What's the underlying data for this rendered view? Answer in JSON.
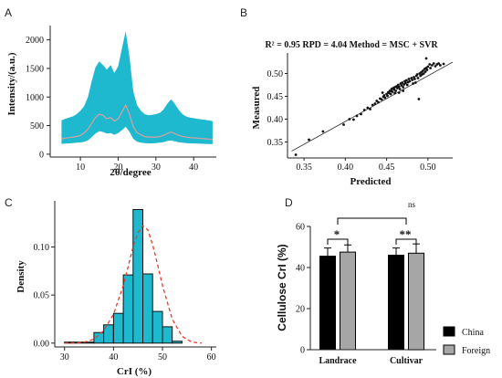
{
  "panel_letters": [
    "A",
    "B",
    "C",
    "D"
  ],
  "chart_data": [
    {
      "panel": "A",
      "type": "area",
      "xlabel": "2θ/degree",
      "ylabel": "Intensity/(a.u.)",
      "xlim": [
        2,
        46
      ],
      "ylim": [
        -50,
        2250
      ],
      "xticks": [
        10,
        20,
        30,
        40
      ],
      "yticks": [
        0,
        500,
        1000,
        1500,
        2000
      ],
      "band_color": "#1fb9cf",
      "mean_color": "#d9a0a0",
      "x": [
        5,
        6,
        7,
        8,
        9,
        10,
        11,
        12,
        13,
        14,
        15,
        16,
        17,
        18,
        19,
        20,
        21,
        22,
        23,
        24,
        25,
        26,
        27,
        28,
        29,
        30,
        31,
        32,
        33,
        34,
        35,
        36,
        37,
        38,
        39,
        40,
        41,
        42,
        43,
        44,
        45
      ],
      "series": [
        {
          "values": [
            590,
            620,
            640,
            660,
            700,
            760,
            840,
            1000,
            1280,
            1520,
            1620,
            1560,
            1480,
            1560,
            1420,
            1540,
            1850,
            2150,
            1700,
            1100,
            860,
            760,
            700,
            680,
            690,
            700,
            720,
            780,
            880,
            960,
            880,
            780,
            700,
            660,
            640,
            630,
            620,
            610,
            600,
            590,
            580
          ]
        },
        {
          "values": [
            270,
            280,
            290,
            300,
            310,
            330,
            370,
            440,
            540,
            640,
            700,
            680,
            620,
            640,
            580,
            620,
            740,
            860,
            700,
            480,
            380,
            340,
            310,
            300,
            300,
            300,
            310,
            330,
            360,
            390,
            360,
            330,
            310,
            300,
            290,
            285,
            280,
            275,
            270,
            265,
            260
          ]
        },
        {
          "values": [
            180,
            185,
            190,
            195,
            200,
            205,
            215,
            240,
            300,
            360,
            400,
            390,
            360,
            370,
            340,
            370,
            420,
            480,
            390,
            270,
            220,
            200,
            195,
            190,
            190,
            195,
            200,
            210,
            230,
            240,
            225,
            210,
            200,
            195,
            190,
            188,
            185,
            183,
            180,
            178,
            175
          ]
        }
      ]
    },
    {
      "panel": "B",
      "type": "scatter",
      "title": "R² = 0.95 RPD = 4.04 Method = MSC + SVR",
      "xlabel": "Predicted",
      "ylabel": "Measured",
      "xlim": [
        0.33,
        0.53
      ],
      "ylim": [
        0.315,
        0.545
      ],
      "xticks": [
        0.35,
        0.4,
        0.45,
        0.5
      ],
      "yticks": [
        0.35,
        0.4,
        0.45,
        0.5
      ],
      "fit_line": {
        "x": [
          0.335,
          0.53
        ],
        "y": [
          0.33,
          0.525
        ]
      },
      "points": [
        [
          0.34,
          0.322
        ],
        [
          0.356,
          0.355
        ],
        [
          0.373,
          0.373
        ],
        [
          0.398,
          0.388
        ],
        [
          0.405,
          0.4
        ],
        [
          0.41,
          0.399
        ],
        [
          0.414,
          0.407
        ],
        [
          0.419,
          0.411
        ],
        [
          0.423,
          0.42
        ],
        [
          0.427,
          0.425
        ],
        [
          0.43,
          0.422
        ],
        [
          0.433,
          0.431
        ],
        [
          0.436,
          0.434
        ],
        [
          0.438,
          0.44
        ],
        [
          0.44,
          0.437
        ],
        [
          0.442,
          0.445
        ],
        [
          0.444,
          0.443
        ],
        [
          0.446,
          0.449
        ],
        [
          0.447,
          0.452
        ],
        [
          0.448,
          0.447
        ],
        [
          0.45,
          0.455
        ],
        [
          0.451,
          0.451
        ],
        [
          0.452,
          0.459
        ],
        [
          0.453,
          0.457
        ],
        [
          0.454,
          0.462
        ],
        [
          0.455,
          0.455
        ],
        [
          0.456,
          0.466
        ],
        [
          0.457,
          0.46
        ],
        [
          0.458,
          0.468
        ],
        [
          0.459,
          0.465
        ],
        [
          0.46,
          0.47
        ],
        [
          0.461,
          0.462
        ],
        [
          0.462,
          0.472
        ],
        [
          0.463,
          0.468
        ],
        [
          0.464,
          0.475
        ],
        [
          0.465,
          0.471
        ],
        [
          0.466,
          0.466
        ],
        [
          0.467,
          0.478
        ],
        [
          0.468,
          0.474
        ],
        [
          0.469,
          0.48
        ],
        [
          0.47,
          0.47
        ],
        [
          0.471,
          0.476
        ],
        [
          0.472,
          0.483
        ],
        [
          0.473,
          0.479
        ],
        [
          0.474,
          0.485
        ],
        [
          0.475,
          0.475
        ],
        [
          0.476,
          0.481
        ],
        [
          0.477,
          0.488
        ],
        [
          0.478,
          0.483
        ],
        [
          0.48,
          0.49
        ],
        [
          0.481,
          0.486
        ],
        [
          0.482,
          0.478
        ],
        [
          0.483,
          0.492
        ],
        [
          0.484,
          0.488
        ],
        [
          0.485,
          0.48
        ],
        [
          0.486,
          0.495
        ],
        [
          0.487,
          0.498
        ],
        [
          0.488,
          0.49
        ],
        [
          0.489,
          0.444
        ],
        [
          0.49,
          0.5
        ],
        [
          0.491,
          0.495
        ],
        [
          0.492,
          0.503
        ],
        [
          0.493,
          0.498
        ],
        [
          0.494,
          0.506
        ],
        [
          0.495,
          0.5
        ],
        [
          0.496,
          0.51
        ],
        [
          0.497,
          0.504
        ],
        [
          0.498,
          0.512
        ],
        [
          0.499,
          0.508
        ],
        [
          0.5,
          0.515
        ],
        [
          0.502,
          0.52
        ],
        [
          0.503,
          0.512
        ],
        [
          0.505,
          0.518
        ],
        [
          0.507,
          0.522
        ],
        [
          0.509,
          0.516
        ],
        [
          0.511,
          0.52
        ],
        [
          0.513,
          0.522
        ],
        [
          0.515,
          0.518
        ],
        [
          0.519,
          0.521
        ],
        [
          0.498,
          0.533
        ],
        [
          0.455,
          0.462
        ],
        [
          0.46,
          0.457
        ],
        [
          0.465,
          0.458
        ],
        [
          0.47,
          0.462
        ],
        [
          0.445,
          0.458
        ]
      ]
    },
    {
      "panel": "C",
      "type": "bar",
      "xlabel": "CrI (%)",
      "ylabel": "Density",
      "xlim": [
        28,
        61
      ],
      "ylim": [
        -0.004,
        0.148
      ],
      "xticks": [
        30,
        40,
        50,
        60
      ],
      "yticks": [
        0.0,
        0.05,
        0.1
      ],
      "bar_color": "#1fb9cf",
      "bin_edges": [
        30,
        36,
        38,
        40,
        42,
        44,
        46,
        48,
        50,
        52,
        54
      ],
      "values": [
        0.001,
        0.011,
        0.019,
        0.031,
        0.071,
        0.139,
        0.072,
        0.033,
        0.017,
        0.002
      ],
      "density_curve": {
        "x": [
          30,
          32,
          34,
          36,
          38,
          40,
          42,
          43,
          44,
          45,
          46,
          47,
          48,
          49,
          50,
          52,
          54,
          56,
          58
        ],
        "y": [
          0.0,
          0.0,
          0.001,
          0.004,
          0.013,
          0.03,
          0.06,
          0.08,
          0.1,
          0.115,
          0.122,
          0.118,
          0.102,
          0.082,
          0.06,
          0.025,
          0.007,
          0.001,
          0.0
        ]
      },
      "curve_color": "#e53b2a"
    },
    {
      "panel": "D",
      "type": "bar",
      "ylabel": "Cellulose CrI (%)",
      "ylim": [
        0,
        60
      ],
      "yticks": [
        0,
        20,
        40,
        60
      ],
      "categories": [
        "Landrace",
        "Cultivar"
      ],
      "series": [
        {
          "name": "China",
          "color": "#000000",
          "values": [
            45.5,
            46.0
          ],
          "errors": [
            4.0,
            3.5
          ]
        },
        {
          "name": "Foreign",
          "color": "#a6a6a6",
          "values": [
            47.5,
            47.0
          ],
          "errors": [
            3.5,
            4.5
          ]
        }
      ],
      "annotations": {
        "within_landrace": "*",
        "within_cultivar": "**",
        "between_groups": "ns"
      }
    }
  ]
}
